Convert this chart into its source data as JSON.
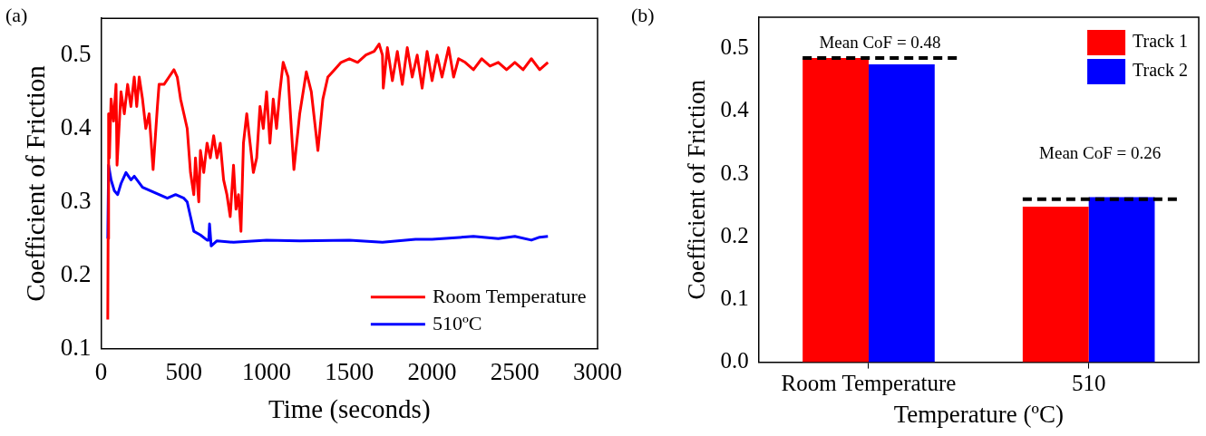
{
  "chart_data": [
    {
      "type": "line",
      "title": "(a)",
      "xlabel": "Time (seconds)",
      "ylabel": "Coefficient of Friction",
      "xlim": [
        0,
        3000
      ],
      "xticks": [
        0,
        500,
        1000,
        1500,
        2000,
        2500,
        3000
      ],
      "ylim": [
        0.1,
        0.55
      ],
      "yticks": [
        0.1,
        0.2,
        0.3,
        0.4,
        0.5
      ],
      "grid": false,
      "legend": "bottom right",
      "marker": "none",
      "line_style": "solid",
      "series": [
        {
          "name": "Room Temperature",
          "color": "#ff0000",
          "x": [
            40,
            42,
            45,
            50,
            60,
            75,
            90,
            96,
            120,
            140,
            160,
            180,
            200,
            215,
            230,
            250,
            270,
            290,
            314,
            340,
            350,
            380,
            410,
            440,
            460,
            480,
            500,
            520,
            540,
            560,
            570,
            590,
            600,
            620,
            640,
            660,
            680,
            700,
            720,
            740,
            760,
            780,
            800,
            815,
            830,
            845,
            860,
            880,
            900,
            920,
            940,
            960,
            980,
            1000,
            1020,
            1040,
            1060,
            1080,
            1100,
            1130,
            1165,
            1200,
            1240,
            1270,
            1310,
            1340,
            1370,
            1410,
            1450,
            1500,
            1550,
            1600,
            1650,
            1680,
            1700,
            1705,
            1730,
            1760,
            1790,
            1820,
            1850,
            1880,
            1910,
            1940,
            1970,
            2000,
            2030,
            2060,
            2100,
            2130,
            2160,
            2200,
            2250,
            2300,
            2350,
            2400,
            2450,
            2500,
            2550,
            2600,
            2650,
            2700
          ],
          "values": [
            0.14,
            0.25,
            0.42,
            0.36,
            0.44,
            0.41,
            0.46,
            0.35,
            0.45,
            0.42,
            0.46,
            0.43,
            0.47,
            0.43,
            0.47,
            0.44,
            0.4,
            0.42,
            0.344,
            0.43,
            0.46,
            0.46,
            0.47,
            0.48,
            0.47,
            0.44,
            0.42,
            0.4,
            0.34,
            0.31,
            0.36,
            0.3,
            0.37,
            0.34,
            0.38,
            0.36,
            0.39,
            0.36,
            0.38,
            0.33,
            0.31,
            0.28,
            0.35,
            0.29,
            0.31,
            0.26,
            0.38,
            0.42,
            0.38,
            0.34,
            0.36,
            0.43,
            0.4,
            0.45,
            0.38,
            0.44,
            0.4,
            0.45,
            0.49,
            0.47,
            0.344,
            0.42,
            0.477,
            0.45,
            0.37,
            0.44,
            0.47,
            0.48,
            0.49,
            0.495,
            0.49,
            0.5,
            0.505,
            0.515,
            0.5,
            0.455,
            0.51,
            0.465,
            0.505,
            0.46,
            0.51,
            0.47,
            0.5,
            0.455,
            0.505,
            0.465,
            0.5,
            0.47,
            0.51,
            0.47,
            0.495,
            0.49,
            0.48,
            0.495,
            0.485,
            0.49,
            0.48,
            0.49,
            0.48,
            0.495,
            0.48,
            0.49
          ]
        },
        {
          "name": "510ºC",
          "color": "#0000ff",
          "x": [
            40,
            45,
            60,
            80,
            100,
            120,
            150,
            180,
            200,
            250,
            300,
            350,
            400,
            450,
            500,
            520,
            540,
            560,
            600,
            640,
            650,
            655,
            665,
            700,
            800,
            1000,
            1200,
            1500,
            1700,
            1900,
            2000,
            2250,
            2400,
            2500,
            2600,
            2650,
            2700
          ],
          "values": [
            0.25,
            0.35,
            0.33,
            0.315,
            0.31,
            0.325,
            0.34,
            0.33,
            0.335,
            0.32,
            0.315,
            0.31,
            0.305,
            0.31,
            0.305,
            0.3,
            0.28,
            0.26,
            0.255,
            0.248,
            0.248,
            0.27,
            0.24,
            0.247,
            0.245,
            0.248,
            0.247,
            0.248,
            0.245,
            0.249,
            0.249,
            0.253,
            0.25,
            0.253,
            0.248,
            0.252,
            0.253
          ]
        }
      ]
    },
    {
      "type": "bar",
      "title": "(b)",
      "xlabel": "Temperature (ºC)",
      "ylabel": "Coefficient of Friction",
      "categories": [
        "Room Temperature",
        "510"
      ],
      "ylim": [
        0,
        0.55
      ],
      "yticks": [
        {
          "value": 0,
          "label": "0.0"
        },
        0.1,
        0.2,
        0.3,
        0.4,
        0.5
      ],
      "grid": false,
      "legend": "top right",
      "series": [
        {
          "name": "Track 1",
          "color": "#ff0000",
          "values": [
            0.485,
            0.248
          ]
        },
        {
          "name": "Track 2",
          "color": "#0000ff",
          "values": [
            0.475,
            0.263
          ]
        }
      ],
      "ref_lines": [
        {
          "axis": "y",
          "value": 0.485,
          "label": "Mean CoF = 0.48",
          "color": "#000000",
          "line_style": "dashed"
        },
        {
          "axis": "y",
          "value": 0.26,
          "label": "Mean CoF = 0.26",
          "color": "#000000",
          "line_style": "dashed"
        }
      ]
    }
  ]
}
